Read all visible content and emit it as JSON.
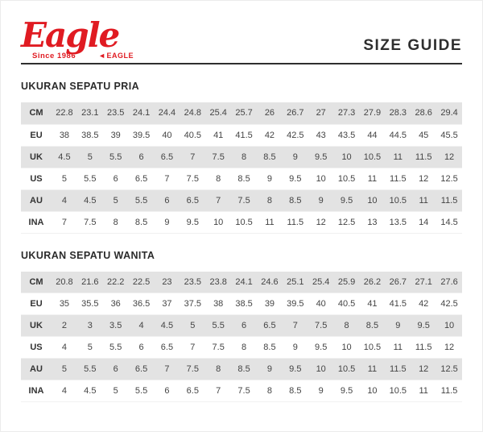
{
  "header": {
    "brand": "Eagle",
    "brand_tagline": "Since 1986",
    "brand_badge": "EAGLE",
    "title": "SIZE GUIDE"
  },
  "colors": {
    "accent_red": "#e01b22",
    "row_gray": "#e3e3e3",
    "text_dark": "#2b2b2b"
  },
  "tables": [
    {
      "heading": "UKURAN SEPATU PRIA",
      "rows": [
        {
          "label": "CM",
          "values": [
            "22.8",
            "23.1",
            "23.5",
            "24.1",
            "24.4",
            "24.8",
            "25.4",
            "25.7",
            "26",
            "26.7",
            "27",
            "27.3",
            "27.9",
            "28.3",
            "28.6",
            "29.4"
          ]
        },
        {
          "label": "EU",
          "values": [
            "38",
            "38.5",
            "39",
            "39.5",
            "40",
            "40.5",
            "41",
            "41.5",
            "42",
            "42.5",
            "43",
            "43.5",
            "44",
            "44.5",
            "45",
            "45.5"
          ]
        },
        {
          "label": "UK",
          "values": [
            "4.5",
            "5",
            "5.5",
            "6",
            "6.5",
            "7",
            "7.5",
            "8",
            "8.5",
            "9",
            "9.5",
            "10",
            "10.5",
            "11",
            "11.5",
            "12"
          ]
        },
        {
          "label": "US",
          "values": [
            "5",
            "5.5",
            "6",
            "6.5",
            "7",
            "7.5",
            "8",
            "8.5",
            "9",
            "9.5",
            "10",
            "10.5",
            "11",
            "11.5",
            "12",
            "12.5"
          ]
        },
        {
          "label": "AU",
          "values": [
            "4",
            "4.5",
            "5",
            "5.5",
            "6",
            "6.5",
            "7",
            "7.5",
            "8",
            "8.5",
            "9",
            "9.5",
            "10",
            "10.5",
            "11",
            "11.5"
          ]
        },
        {
          "label": "INA",
          "values": [
            "7",
            "7.5",
            "8",
            "8.5",
            "9",
            "9.5",
            "10",
            "10.5",
            "11",
            "11.5",
            "12",
            "12.5",
            "13",
            "13.5",
            "14",
            "14.5"
          ]
        }
      ]
    },
    {
      "heading": "UKURAN SEPATU WANITA",
      "rows": [
        {
          "label": "CM",
          "values": [
            "20.8",
            "21.6",
            "22.2",
            "22.5",
            "23",
            "23.5",
            "23.8",
            "24.1",
            "24.6",
            "25.1",
            "25.4",
            "25.9",
            "26.2",
            "26.7",
            "27.1",
            "27.6"
          ]
        },
        {
          "label": "EU",
          "values": [
            "35",
            "35.5",
            "36",
            "36.5",
            "37",
            "37.5",
            "38",
            "38.5",
            "39",
            "39.5",
            "40",
            "40.5",
            "41",
            "41.5",
            "42",
            "42.5"
          ]
        },
        {
          "label": "UK",
          "values": [
            "2",
            "3",
            "3.5",
            "4",
            "4.5",
            "5",
            "5.5",
            "6",
            "6.5",
            "7",
            "7.5",
            "8",
            "8.5",
            "9",
            "9.5",
            "10"
          ]
        },
        {
          "label": "US",
          "values": [
            "4",
            "5",
            "5.5",
            "6",
            "6.5",
            "7",
            "7.5",
            "8",
            "8.5",
            "9",
            "9.5",
            "10",
            "10.5",
            "11",
            "11.5",
            "12"
          ]
        },
        {
          "label": "AU",
          "values": [
            "5",
            "5.5",
            "6",
            "6.5",
            "7",
            "7.5",
            "8",
            "8.5",
            "9",
            "9.5",
            "10",
            "10.5",
            "11",
            "11.5",
            "12",
            "12.5"
          ]
        },
        {
          "label": "INA",
          "values": [
            "4",
            "4.5",
            "5",
            "5.5",
            "6",
            "6.5",
            "7",
            "7.5",
            "8",
            "8.5",
            "9",
            "9.5",
            "10",
            "10.5",
            "11",
            "11.5"
          ]
        }
      ]
    }
  ]
}
